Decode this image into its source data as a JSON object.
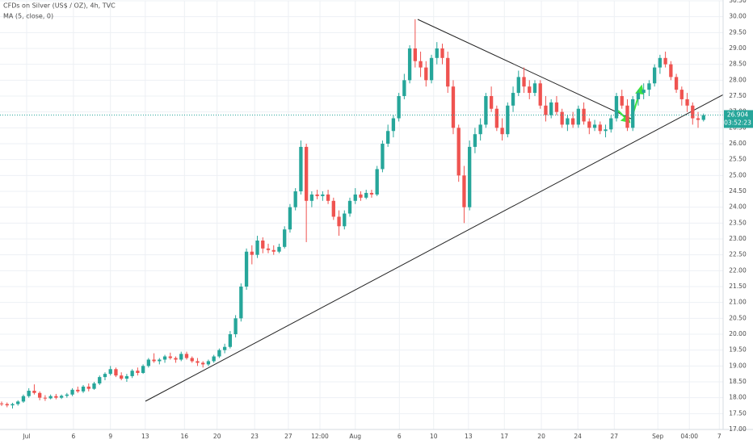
{
  "chart_data": {
    "type": "candlestick",
    "title": "CFDs on Silver (US$ / OZ), 4h, TVC",
    "indicator": "MA (5, close, 0)",
    "up_color": "#26a69a",
    "down_color": "#ef5350",
    "grid": true,
    "last_price": 26.904,
    "countdown": "03:52:23",
    "xlim": [
      -0.3,
      132.6
    ],
    "xticks": [
      {
        "value": 4.6,
        "label": "Jul"
      },
      {
        "value": 13.2,
        "label": "6"
      },
      {
        "value": 20.0,
        "label": "9"
      },
      {
        "value": 26.4,
        "label": "13"
      },
      {
        "value": 33.6,
        "label": "16"
      },
      {
        "value": 39.6,
        "label": "20"
      },
      {
        "value": 46.5,
        "label": "23"
      },
      {
        "value": 52.7,
        "label": "27"
      },
      {
        "value": 58.5,
        "label": "12:00"
      },
      {
        "value": 65.0,
        "label": "Aug"
      },
      {
        "value": 73.1,
        "label": "6"
      },
      {
        "value": 79.4,
        "label": "10"
      },
      {
        "value": 85.8,
        "label": "13"
      },
      {
        "value": 92.4,
        "label": "17"
      },
      {
        "value": 99.2,
        "label": "20"
      },
      {
        "value": 105.9,
        "label": "24"
      },
      {
        "value": 112.6,
        "label": "27"
      },
      {
        "value": 120.6,
        "label": "Sep"
      },
      {
        "value": 126.4,
        "label": "04:00"
      },
      {
        "value": 131.9,
        "label": "7"
      }
    ],
    "ylim": [
      17.0,
      30.5
    ],
    "yticks": [
      {
        "value": 17.0,
        "label": "17.00"
      },
      {
        "value": 17.5,
        "label": "17.50"
      },
      {
        "value": 18.0,
        "label": "18.00"
      },
      {
        "value": 18.5,
        "label": "18.50"
      },
      {
        "value": 19.0,
        "label": "19.00"
      },
      {
        "value": 19.5,
        "label": "19.50"
      },
      {
        "value": 20.0,
        "label": "20.00"
      },
      {
        "value": 20.5,
        "label": "20.50"
      },
      {
        "value": 21.0,
        "label": "21.00"
      },
      {
        "value": 21.5,
        "label": "21.50"
      },
      {
        "value": 22.0,
        "label": "22.00"
      },
      {
        "value": 22.5,
        "label": "22.50"
      },
      {
        "value": 23.0,
        "label": "23.00"
      },
      {
        "value": 23.5,
        "label": "23.50"
      },
      {
        "value": 24.0,
        "label": "24.00"
      },
      {
        "value": 24.5,
        "label": "24.50"
      },
      {
        "value": 25.0,
        "label": "25.00"
      },
      {
        "value": 25.5,
        "label": "25.50"
      },
      {
        "value": 26.0,
        "label": "26.00"
      },
      {
        "value": 26.5,
        "label": "26.50"
      },
      {
        "value": 27.0,
        "label": "27.00"
      },
      {
        "value": 27.5,
        "label": "27.50"
      },
      {
        "value": 28.0,
        "label": "28.00"
      },
      {
        "value": 28.5,
        "label": "28.50"
      },
      {
        "value": 29.0,
        "label": "29.00"
      },
      {
        "value": 29.5,
        "label": "29.50"
      },
      {
        "value": 30.0,
        "label": "30.00"
      },
      {
        "value": 30.5,
        "label": "30.50"
      }
    ],
    "candles": [
      [
        17.82,
        17.88,
        17.74,
        17.8
      ],
      [
        17.8,
        17.85,
        17.7,
        17.76
      ],
      [
        17.76,
        17.84,
        17.66,
        17.8
      ],
      [
        17.8,
        17.92,
        17.75,
        17.88
      ],
      [
        17.88,
        18.1,
        17.84,
        18.05
      ],
      [
        18.05,
        18.3,
        18.0,
        18.22
      ],
      [
        18.22,
        18.42,
        18.1,
        18.15
      ],
      [
        18.15,
        18.2,
        17.92,
        18.0
      ],
      [
        18.0,
        18.08,
        17.9,
        17.98
      ],
      [
        17.98,
        18.1,
        17.95,
        18.05
      ],
      [
        18.05,
        18.12,
        17.95,
        18.0
      ],
      [
        18.0,
        18.1,
        17.96,
        18.06
      ],
      [
        18.06,
        18.15,
        18.0,
        18.1
      ],
      [
        18.1,
        18.3,
        18.05,
        18.25
      ],
      [
        18.25,
        18.35,
        18.15,
        18.2
      ],
      [
        18.2,
        18.4,
        18.15,
        18.35
      ],
      [
        18.35,
        18.45,
        18.2,
        18.28
      ],
      [
        18.28,
        18.5,
        18.25,
        18.45
      ],
      [
        18.45,
        18.7,
        18.4,
        18.65
      ],
      [
        18.65,
        18.8,
        18.55,
        18.75
      ],
      [
        18.75,
        19.0,
        18.7,
        18.9
      ],
      [
        18.9,
        18.95,
        18.65,
        18.7
      ],
      [
        18.7,
        18.8,
        18.55,
        18.6
      ],
      [
        18.6,
        18.75,
        18.5,
        18.68
      ],
      [
        18.68,
        18.9,
        18.62,
        18.85
      ],
      [
        18.85,
        18.95,
        18.7,
        18.78
      ],
      [
        18.78,
        19.05,
        18.75,
        19.0
      ],
      [
        19.0,
        19.25,
        18.95,
        19.2
      ],
      [
        19.2,
        19.4,
        19.1,
        19.15
      ],
      [
        19.15,
        19.25,
        19.05,
        19.2
      ],
      [
        19.2,
        19.35,
        19.1,
        19.3
      ],
      [
        19.3,
        19.42,
        19.2,
        19.25
      ],
      [
        19.25,
        19.3,
        19.1,
        19.2
      ],
      [
        19.2,
        19.45,
        19.15,
        19.38
      ],
      [
        19.38,
        19.45,
        19.2,
        19.25
      ],
      [
        19.25,
        19.3,
        19.1,
        19.15
      ],
      [
        19.15,
        19.25,
        19.0,
        19.1
      ],
      [
        19.1,
        19.15,
        18.95,
        19.05
      ],
      [
        19.05,
        19.2,
        19.0,
        19.15
      ],
      [
        19.15,
        19.35,
        19.1,
        19.3
      ],
      [
        19.3,
        19.55,
        19.25,
        19.5
      ],
      [
        19.5,
        19.7,
        19.4,
        19.6
      ],
      [
        19.6,
        20.1,
        19.55,
        20.0
      ],
      [
        20.0,
        20.6,
        19.9,
        20.5
      ],
      [
        20.5,
        21.6,
        20.4,
        21.5
      ],
      [
        21.5,
        22.7,
        21.4,
        22.6
      ],
      [
        22.6,
        22.8,
        22.2,
        22.5
      ],
      [
        22.5,
        23.1,
        22.4,
        22.95
      ],
      [
        22.95,
        23.05,
        22.55,
        22.7
      ],
      [
        22.7,
        22.85,
        22.55,
        22.65
      ],
      [
        22.65,
        22.8,
        22.5,
        22.6
      ],
      [
        22.6,
        22.85,
        22.55,
        22.75
      ],
      [
        22.75,
        23.4,
        22.7,
        23.3
      ],
      [
        23.3,
        24.1,
        23.2,
        24.0
      ],
      [
        24.0,
        24.6,
        23.9,
        24.5
      ],
      [
        24.5,
        26.1,
        24.4,
        25.9
      ],
      [
        25.9,
        26.0,
        22.9,
        24.2
      ],
      [
        24.2,
        24.5,
        24.0,
        24.4
      ],
      [
        24.4,
        24.55,
        24.25,
        24.35
      ],
      [
        24.35,
        24.5,
        24.2,
        24.4
      ],
      [
        24.4,
        24.55,
        24.1,
        24.2
      ],
      [
        24.2,
        24.3,
        23.6,
        23.7
      ],
      [
        23.7,
        23.9,
        23.1,
        23.4
      ],
      [
        23.4,
        23.9,
        23.3,
        23.8
      ],
      [
        23.8,
        24.3,
        23.7,
        24.2
      ],
      [
        24.2,
        24.6,
        24.1,
        24.4
      ],
      [
        24.4,
        24.5,
        24.2,
        24.3
      ],
      [
        24.3,
        24.55,
        24.25,
        24.45
      ],
      [
        24.45,
        24.55,
        24.3,
        24.4
      ],
      [
        24.4,
        25.3,
        24.35,
        25.2
      ],
      [
        25.2,
        26.1,
        25.1,
        26.0
      ],
      [
        26.0,
        26.6,
        25.9,
        26.4
      ],
      [
        26.4,
        26.9,
        26.2,
        26.8
      ],
      [
        26.8,
        27.6,
        26.7,
        27.5
      ],
      [
        27.5,
        28.2,
        27.4,
        28.0
      ],
      [
        28.0,
        29.1,
        27.9,
        29.0
      ],
      [
        29.0,
        29.92,
        28.4,
        28.6
      ],
      [
        28.6,
        28.9,
        28.1,
        28.4
      ],
      [
        28.4,
        28.6,
        27.8,
        28.0
      ],
      [
        28.0,
        28.8,
        27.9,
        28.7
      ],
      [
        28.7,
        29.2,
        28.5,
        29.0
      ],
      [
        29.0,
        29.15,
        28.5,
        28.7
      ],
      [
        28.7,
        28.9,
        27.6,
        27.8
      ],
      [
        27.8,
        28.0,
        26.3,
        26.5
      ],
      [
        26.5,
        26.6,
        24.8,
        25.0
      ],
      [
        25.0,
        25.3,
        23.5,
        24.0
      ],
      [
        24.0,
        26.1,
        23.9,
        25.9
      ],
      [
        25.9,
        26.5,
        25.7,
        26.3
      ],
      [
        26.3,
        26.8,
        26.1,
        26.6
      ],
      [
        26.6,
        27.6,
        26.5,
        27.5
      ],
      [
        27.5,
        27.8,
        27.0,
        27.1
      ],
      [
        27.1,
        27.2,
        26.4,
        26.5
      ],
      [
        26.5,
        26.8,
        26.1,
        26.3
      ],
      [
        26.3,
        27.3,
        26.2,
        27.2
      ],
      [
        27.2,
        27.8,
        27.0,
        27.6
      ],
      [
        27.6,
        28.3,
        27.5,
        28.1
      ],
      [
        28.1,
        28.4,
        27.6,
        27.8
      ],
      [
        27.8,
        28.0,
        27.4,
        27.6
      ],
      [
        27.6,
        28.0,
        27.5,
        27.9
      ],
      [
        27.9,
        28.0,
        27.1,
        27.2
      ],
      [
        27.2,
        27.5,
        26.7,
        26.9
      ],
      [
        26.9,
        27.4,
        26.8,
        27.3
      ],
      [
        27.3,
        27.5,
        26.9,
        27.0
      ],
      [
        27.0,
        27.1,
        26.5,
        26.6
      ],
      [
        26.6,
        26.9,
        26.4,
        26.8
      ],
      [
        26.8,
        27.0,
        26.5,
        26.6
      ],
      [
        26.6,
        27.2,
        26.5,
        27.1
      ],
      [
        27.1,
        27.3,
        26.6,
        26.7
      ],
      [
        26.7,
        26.8,
        26.3,
        26.5
      ],
      [
        26.5,
        26.75,
        26.4,
        26.6
      ],
      [
        26.6,
        26.7,
        26.3,
        26.4
      ],
      [
        26.4,
        26.6,
        26.2,
        26.45
      ],
      [
        26.45,
        26.9,
        26.35,
        26.8
      ],
      [
        26.8,
        27.6,
        26.7,
        27.5
      ],
      [
        27.5,
        27.7,
        27.1,
        27.2
      ],
      [
        27.2,
        27.4,
        26.4,
        26.5
      ],
      [
        26.5,
        27.5,
        26.4,
        27.4
      ],
      [
        27.4,
        27.7,
        27.2,
        27.6
      ],
      [
        27.6,
        27.9,
        27.4,
        27.7
      ],
      [
        27.7,
        28.0,
        27.5,
        27.9
      ],
      [
        27.9,
        28.5,
        27.8,
        28.4
      ],
      [
        28.4,
        28.8,
        28.2,
        28.7
      ],
      [
        28.7,
        28.9,
        28.4,
        28.5
      ],
      [
        28.5,
        28.6,
        28.0,
        28.1
      ],
      [
        28.1,
        28.2,
        27.6,
        27.7
      ],
      [
        27.7,
        27.8,
        27.2,
        27.4
      ],
      [
        27.4,
        27.6,
        27.0,
        27.2
      ],
      [
        27.2,
        27.3,
        26.6,
        26.8
      ],
      [
        26.8,
        27.0,
        26.5,
        26.75
      ],
      [
        26.75,
        26.95,
        26.7,
        26.9
      ]
    ]
  }
}
